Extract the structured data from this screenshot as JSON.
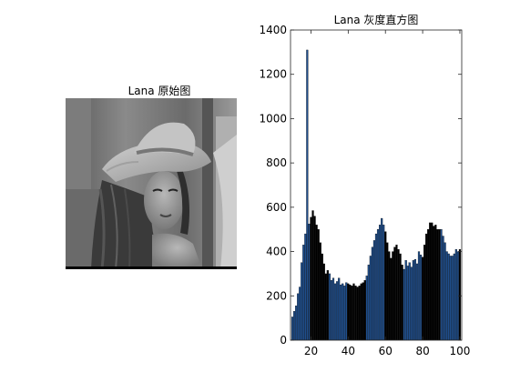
{
  "image_panel": {
    "title": "Lana 原始图",
    "picture": "grayscale portrait photo of a woman wearing a wide-brimmed hat"
  },
  "chart_data": {
    "type": "bar",
    "title": "Lana 灰度直方图",
    "xlabel": "",
    "ylabel": "",
    "xlim": [
      9,
      101
    ],
    "ylim": [
      0,
      1400
    ],
    "x_ticks": [
      20,
      40,
      60,
      80,
      100
    ],
    "y_ticks": [
      0,
      200,
      400,
      600,
      800,
      1000,
      1200,
      1400
    ],
    "grid": false,
    "legend": "none",
    "bar_colors": [
      "#1f4e8c",
      "#000000"
    ],
    "x": [
      10,
      11,
      12,
      13,
      14,
      15,
      16,
      17,
      18,
      19,
      20,
      21,
      22,
      23,
      24,
      25,
      26,
      27,
      28,
      29,
      30,
      31,
      32,
      33,
      34,
      35,
      36,
      37,
      38,
      39,
      40,
      41,
      42,
      43,
      44,
      45,
      46,
      47,
      48,
      49,
      50,
      51,
      52,
      53,
      54,
      55,
      56,
      57,
      58,
      59,
      60,
      61,
      62,
      63,
      64,
      65,
      66,
      67,
      68,
      69,
      70,
      71,
      72,
      73,
      74,
      75,
      76,
      77,
      78,
      79,
      80,
      81,
      82,
      83,
      84,
      85,
      86,
      87,
      88,
      89,
      90,
      91,
      92,
      93,
      94,
      95,
      96,
      97,
      98,
      99,
      100
    ],
    "values": [
      105,
      130,
      155,
      210,
      240,
      350,
      430,
      480,
      1310,
      525,
      555,
      585,
      560,
      520,
      500,
      440,
      390,
      345,
      300,
      315,
      300,
      270,
      280,
      255,
      265,
      280,
      250,
      255,
      245,
      260,
      255,
      250,
      245,
      255,
      245,
      240,
      245,
      255,
      260,
      270,
      290,
      340,
      380,
      420,
      450,
      480,
      500,
      520,
      550,
      520,
      490,
      440,
      400,
      370,
      400,
      420,
      430,
      410,
      390,
      340,
      320,
      360,
      335,
      350,
      330,
      360,
      365,
      345,
      400,
      385,
      375,
      430,
      480,
      500,
      530,
      530,
      515,
      520,
      500,
      500,
      500,
      470,
      440,
      400,
      390,
      380,
      380,
      390,
      410,
      400,
      410
    ]
  }
}
